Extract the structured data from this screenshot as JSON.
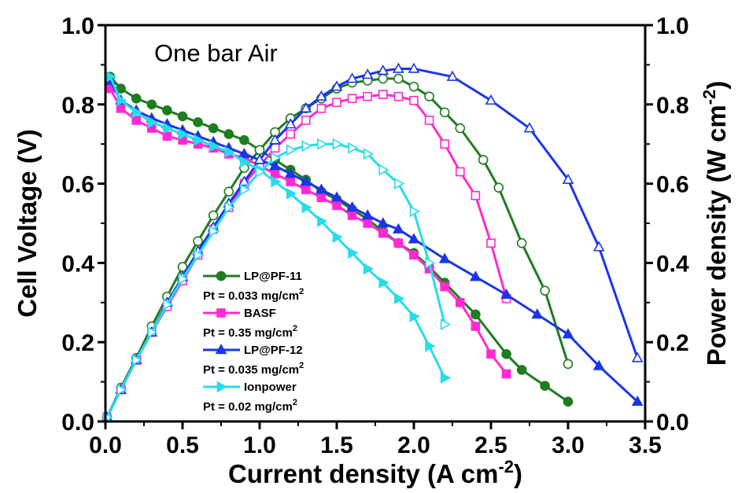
{
  "chart_data": {
    "type": "line",
    "annotation": "One bar Air",
    "xlabel": "Current density (A cm",
    "xlabel_sup": "-2",
    "xlabel_end": ")",
    "ylabel_left": "Cell Voltage (V)",
    "ylabel_right": "Power density (W cm",
    "ylabel_right_sup": "-2",
    "ylabel_right_end": ")",
    "xlim": [
      0,
      3.5
    ],
    "ylim_left": [
      0,
      1.0
    ],
    "ylim_right": [
      0,
      1.0
    ],
    "xticks": [
      "0.0",
      "0.5",
      "1.0",
      "1.5",
      "2.0",
      "2.5",
      "3.0",
      "3.5"
    ],
    "yticks_left": [
      "0.0",
      "0.2",
      "0.4",
      "0.6",
      "0.8",
      "1.0"
    ],
    "yticks_right": [
      "0.0",
      "0.2",
      "0.4",
      "0.6",
      "0.8",
      "1.0"
    ],
    "grid": false,
    "legend_position": "lower-left",
    "series": [
      {
        "name": "LP@PF-11",
        "loading": "Pt = 0.033 mg/cm",
        "loading_sup": "2",
        "color": "#1e7d1e",
        "marker": "circle",
        "voltage": [
          [
            0.03,
            0.87
          ],
          [
            0.1,
            0.84
          ],
          [
            0.2,
            0.815
          ],
          [
            0.3,
            0.8
          ],
          [
            0.4,
            0.785
          ],
          [
            0.5,
            0.77
          ],
          [
            0.6,
            0.755
          ],
          [
            0.7,
            0.74
          ],
          [
            0.8,
            0.725
          ],
          [
            0.9,
            0.71
          ],
          [
            1.0,
            0.685
          ],
          [
            1.1,
            0.66
          ],
          [
            1.2,
            0.635
          ],
          [
            1.3,
            0.61
          ],
          [
            1.4,
            0.58
          ],
          [
            1.5,
            0.56
          ],
          [
            1.6,
            0.535
          ],
          [
            1.7,
            0.51
          ],
          [
            1.8,
            0.48
          ],
          [
            1.9,
            0.45
          ],
          [
            2.0,
            0.425
          ],
          [
            2.1,
            0.39
          ],
          [
            2.2,
            0.35
          ],
          [
            2.4,
            0.27
          ],
          [
            2.6,
            0.17
          ],
          [
            2.7,
            0.13
          ],
          [
            2.85,
            0.09
          ],
          [
            3.0,
            0.05
          ]
        ],
        "power": [
          [
            0.01,
            0.01
          ],
          [
            0.1,
            0.085
          ],
          [
            0.2,
            0.16
          ],
          [
            0.3,
            0.24
          ],
          [
            0.4,
            0.315
          ],
          [
            0.5,
            0.39
          ],
          [
            0.6,
            0.455
          ],
          [
            0.7,
            0.52
          ],
          [
            0.8,
            0.58
          ],
          [
            0.9,
            0.64
          ],
          [
            1.0,
            0.685
          ],
          [
            1.1,
            0.73
          ],
          [
            1.2,
            0.765
          ],
          [
            1.3,
            0.79
          ],
          [
            1.4,
            0.815
          ],
          [
            1.5,
            0.84
          ],
          [
            1.6,
            0.855
          ],
          [
            1.7,
            0.86
          ],
          [
            1.8,
            0.865
          ],
          [
            1.9,
            0.865
          ],
          [
            2.0,
            0.845
          ],
          [
            2.1,
            0.82
          ],
          [
            2.2,
            0.78
          ],
          [
            2.3,
            0.74
          ],
          [
            2.45,
            0.66
          ],
          [
            2.55,
            0.59
          ],
          [
            2.7,
            0.45
          ],
          [
            2.85,
            0.33
          ],
          [
            3.0,
            0.145
          ]
        ]
      },
      {
        "name": "BASF",
        "loading": "Pt = 0.35 mg/cm",
        "loading_sup": "2",
        "color": "#ff2ad4",
        "marker": "square",
        "voltage": [
          [
            0.03,
            0.84
          ],
          [
            0.1,
            0.79
          ],
          [
            0.2,
            0.76
          ],
          [
            0.3,
            0.74
          ],
          [
            0.4,
            0.72
          ],
          [
            0.5,
            0.71
          ],
          [
            0.6,
            0.7
          ],
          [
            0.7,
            0.69
          ],
          [
            0.8,
            0.675
          ],
          [
            0.9,
            0.665
          ],
          [
            1.0,
            0.645
          ],
          [
            1.1,
            0.625
          ],
          [
            1.2,
            0.605
          ],
          [
            1.3,
            0.585
          ],
          [
            1.4,
            0.565
          ],
          [
            1.5,
            0.545
          ],
          [
            1.6,
            0.52
          ],
          [
            1.7,
            0.5
          ],
          [
            1.8,
            0.475
          ],
          [
            1.9,
            0.45
          ],
          [
            2.0,
            0.42
          ],
          [
            2.1,
            0.385
          ],
          [
            2.2,
            0.34
          ],
          [
            2.3,
            0.3
          ],
          [
            2.4,
            0.24
          ],
          [
            2.5,
            0.17
          ],
          [
            2.6,
            0.12
          ]
        ],
        "power": [
          [
            0.01,
            0.01
          ],
          [
            0.1,
            0.08
          ],
          [
            0.2,
            0.155
          ],
          [
            0.3,
            0.225
          ],
          [
            0.4,
            0.29
          ],
          [
            0.5,
            0.355
          ],
          [
            0.6,
            0.42
          ],
          [
            0.7,
            0.485
          ],
          [
            0.8,
            0.54
          ],
          [
            0.9,
            0.6
          ],
          [
            1.0,
            0.645
          ],
          [
            1.1,
            0.69
          ],
          [
            1.2,
            0.725
          ],
          [
            1.3,
            0.76
          ],
          [
            1.4,
            0.79
          ],
          [
            1.5,
            0.805
          ],
          [
            1.6,
            0.815
          ],
          [
            1.7,
            0.82
          ],
          [
            1.8,
            0.825
          ],
          [
            1.9,
            0.82
          ],
          [
            2.0,
            0.81
          ],
          [
            2.1,
            0.76
          ],
          [
            2.2,
            0.7
          ],
          [
            2.3,
            0.63
          ],
          [
            2.4,
            0.57
          ],
          [
            2.5,
            0.45
          ],
          [
            2.6,
            0.31
          ]
        ]
      },
      {
        "name": "LP@PF-12",
        "loading": "Pt = 0.035 mg/cm",
        "loading_sup": "2",
        "color": "#1a36e8",
        "marker": "triangle-up",
        "voltage": [
          [
            0.03,
            0.86
          ],
          [
            0.1,
            0.81
          ],
          [
            0.2,
            0.785
          ],
          [
            0.3,
            0.765
          ],
          [
            0.4,
            0.75
          ],
          [
            0.5,
            0.735
          ],
          [
            0.6,
            0.72
          ],
          [
            0.7,
            0.705
          ],
          [
            0.8,
            0.69
          ],
          [
            0.9,
            0.675
          ],
          [
            1.0,
            0.66
          ],
          [
            1.1,
            0.645
          ],
          [
            1.2,
            0.625
          ],
          [
            1.3,
            0.605
          ],
          [
            1.4,
            0.585
          ],
          [
            1.5,
            0.565
          ],
          [
            1.6,
            0.54
          ],
          [
            1.7,
            0.52
          ],
          [
            1.8,
            0.5
          ],
          [
            1.9,
            0.485
          ],
          [
            2.0,
            0.46
          ],
          [
            2.2,
            0.41
          ],
          [
            2.4,
            0.365
          ],
          [
            2.6,
            0.32
          ],
          [
            2.8,
            0.27
          ],
          [
            3.0,
            0.22
          ],
          [
            3.2,
            0.14
          ],
          [
            3.45,
            0.05
          ]
        ],
        "power": [
          [
            0.01,
            0.01
          ],
          [
            0.1,
            0.08
          ],
          [
            0.2,
            0.155
          ],
          [
            0.3,
            0.225
          ],
          [
            0.4,
            0.3
          ],
          [
            0.5,
            0.365
          ],
          [
            0.6,
            0.43
          ],
          [
            0.7,
            0.49
          ],
          [
            0.8,
            0.55
          ],
          [
            0.9,
            0.605
          ],
          [
            1.0,
            0.66
          ],
          [
            1.1,
            0.71
          ],
          [
            1.2,
            0.75
          ],
          [
            1.3,
            0.79
          ],
          [
            1.4,
            0.82
          ],
          [
            1.5,
            0.845
          ],
          [
            1.6,
            0.865
          ],
          [
            1.7,
            0.875
          ],
          [
            1.8,
            0.885
          ],
          [
            1.9,
            0.89
          ],
          [
            2.0,
            0.89
          ],
          [
            2.25,
            0.87
          ],
          [
            2.5,
            0.81
          ],
          [
            2.75,
            0.74
          ],
          [
            3.0,
            0.61
          ],
          [
            3.2,
            0.44
          ],
          [
            3.45,
            0.16
          ]
        ]
      },
      {
        "name": "Ionpower",
        "loading": "Pt = 0.02 mg/cm",
        "loading_sup": "2",
        "color": "#27dcea",
        "marker": "triangle-right",
        "voltage": [
          [
            0.03,
            0.87
          ],
          [
            0.1,
            0.81
          ],
          [
            0.2,
            0.78
          ],
          [
            0.3,
            0.755
          ],
          [
            0.4,
            0.74
          ],
          [
            0.5,
            0.725
          ],
          [
            0.6,
            0.71
          ],
          [
            0.7,
            0.695
          ],
          [
            0.8,
            0.68
          ],
          [
            0.9,
            0.655
          ],
          [
            1.0,
            0.635
          ],
          [
            1.1,
            0.605
          ],
          [
            1.2,
            0.575
          ],
          [
            1.3,
            0.54
          ],
          [
            1.4,
            0.505
          ],
          [
            1.5,
            0.465
          ],
          [
            1.6,
            0.425
          ],
          [
            1.7,
            0.385
          ],
          [
            1.8,
            0.35
          ],
          [
            1.9,
            0.31
          ],
          [
            2.0,
            0.265
          ],
          [
            2.1,
            0.19
          ],
          [
            2.2,
            0.11
          ]
        ],
        "power": [
          [
            0.01,
            0.01
          ],
          [
            0.1,
            0.08
          ],
          [
            0.2,
            0.155
          ],
          [
            0.3,
            0.225
          ],
          [
            0.4,
            0.295
          ],
          [
            0.5,
            0.36
          ],
          [
            0.6,
            0.42
          ],
          [
            0.7,
            0.48
          ],
          [
            0.8,
            0.54
          ],
          [
            0.9,
            0.585
          ],
          [
            1.0,
            0.63
          ],
          [
            1.1,
            0.665
          ],
          [
            1.2,
            0.685
          ],
          [
            1.3,
            0.695
          ],
          [
            1.4,
            0.7
          ],
          [
            1.5,
            0.7
          ],
          [
            1.6,
            0.69
          ],
          [
            1.7,
            0.675
          ],
          [
            1.8,
            0.635
          ],
          [
            1.9,
            0.6
          ],
          [
            2.0,
            0.53
          ],
          [
            2.1,
            0.4
          ],
          [
            2.2,
            0.245
          ]
        ]
      }
    ]
  }
}
